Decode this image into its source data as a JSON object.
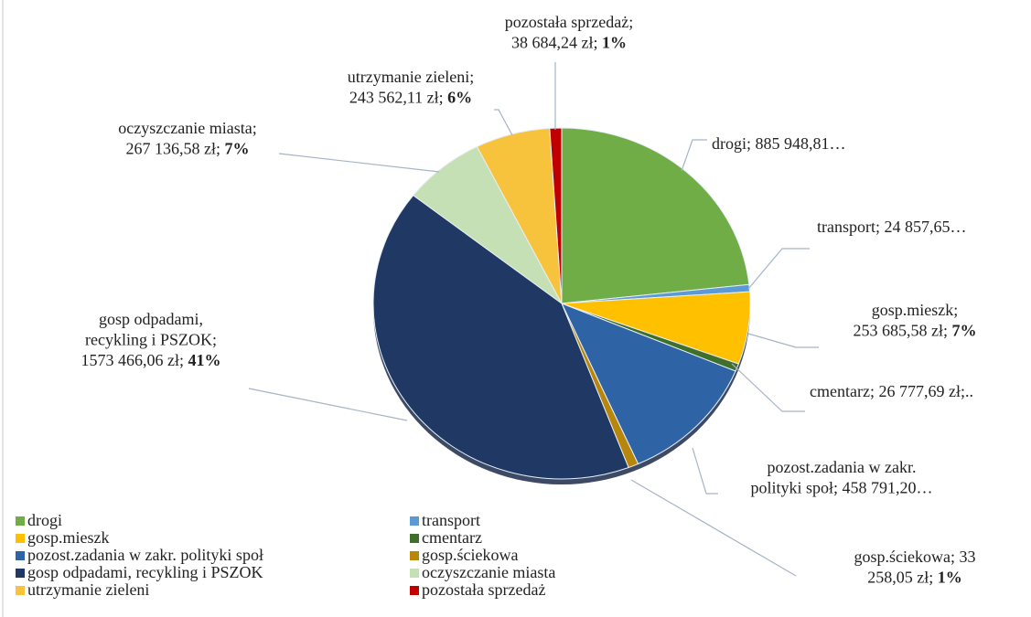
{
  "chart_data": {
    "type": "pie",
    "categories": [
      "drogi",
      "transport",
      "gosp.mieszk",
      "cmentarz",
      "pozost.zadania w zakr. polityki społ",
      "gosp.ściekowa",
      "gosp odpadami, recykling i PSZOK",
      "oczyszczanie miasta",
      "utrzymanie zieleni",
      "pozostała sprzedaż"
    ],
    "values": [
      885948.81,
      24857.65,
      253685.58,
      26777.69,
      458791.2,
      33258.05,
      1573466.06,
      267136.58,
      243562.11,
      38684.24
    ],
    "value_labels": [
      "drogi; 885 948,81…",
      "transport; 24 857,65…",
      "gosp.mieszk;\n253 685,58 zł; ",
      "cmentarz; 26 777,69 zł;..",
      "pozost.zadania w zakr.\npolityki społ; 458 791,20…",
      "gosp.ściekowa; 33\n258,05 zł; ",
      "gosp odpadami,\nrecykling i PSZOK;\n1573 466,06 zł; ",
      "oczyszczanie miasta;\n267 136,58 zł; ",
      "utrzymanie zieleni;\n243 562,11 zł; ",
      "pozostała sprzedaż;\n38 684,24 zł; "
    ],
    "percent_labels": [
      null,
      null,
      "7%",
      null,
      null,
      "1%",
      "41%",
      "7%",
      "6%",
      "1%"
    ],
    "colors": [
      "#70ad47",
      "#5b9bd5",
      "#ffc000",
      "#3f6f2a",
      "#2e64a6",
      "#b8860b",
      "#203864",
      "#c5e0b4",
      "#f7c33c",
      "#c00000"
    ],
    "legend": "bottom"
  }
}
